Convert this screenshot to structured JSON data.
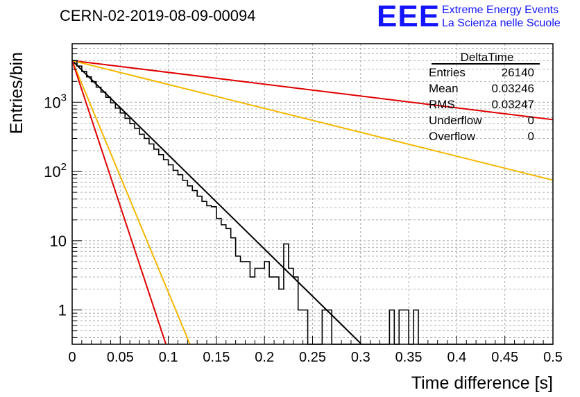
{
  "header": {
    "run_title": "CERN-02-2019-08-09-00094",
    "logo_text": "EEE",
    "logo_line1": "Extreme Energy Events",
    "logo_line2": "La Scienza nelle Scuole",
    "logo_color": "#1414ff"
  },
  "stats_box": {
    "title": "DeltaTime",
    "rows": [
      {
        "label": "Entries",
        "value": "26140"
      },
      {
        "label": "Mean",
        "value": "0.03246"
      },
      {
        "label": "RMS",
        "value": "0.03247"
      },
      {
        "label": "Underflow",
        "value": "0"
      },
      {
        "label": "Overflow",
        "value": "0"
      }
    ]
  },
  "chart_data": {
    "type": "line",
    "xlabel": "Time difference [s]",
    "ylabel": "Entries/bin",
    "xlim": [
      0,
      0.5
    ],
    "ylim": [
      0.32,
      7000
    ],
    "yscale": "log",
    "grid": true,
    "x_ticks": [
      "0",
      "0.05",
      "0.1",
      "0.15",
      "0.2",
      "0.25",
      "0.3",
      "0.35",
      "0.4",
      "0.45",
      "0.5"
    ],
    "y_ticks": [
      {
        "value": 1,
        "label": "1"
      },
      {
        "value": 10,
        "label": "10"
      },
      {
        "value": 100,
        "label": "10^2"
      },
      {
        "value": 1000,
        "label": "10^3"
      }
    ],
    "histogram": {
      "bin_width": 0.005,
      "color": "#000000",
      "values": [
        4000,
        3330,
        2790,
        2330,
        1980,
        1650,
        1400,
        1180,
        980,
        825,
        700,
        585,
        490,
        420,
        345,
        300,
        250,
        210,
        175,
        148,
        125,
        104,
        90,
        74,
        62,
        53,
        44,
        37,
        32,
        31,
        21,
        17,
        15,
        11,
        6,
        5,
        5,
        3,
        4,
        4,
        5,
        3,
        3,
        2,
        9,
        4,
        3,
        1,
        1,
        0,
        0,
        0,
        1,
        1,
        0,
        0,
        0,
        0,
        0,
        0,
        0,
        0,
        0,
        0,
        0,
        0,
        1,
        0,
        1,
        1,
        0,
        1,
        0,
        0,
        0,
        0,
        0,
        0,
        0,
        0,
        0,
        0,
        0,
        0,
        0,
        0,
        0,
        0,
        0,
        0,
        0,
        0,
        0,
        0,
        0,
        0,
        0,
        0,
        0,
        0
      ]
    },
    "fit_lines": [
      {
        "color": "#000000",
        "points": [
          [
            0,
            4000
          ],
          [
            0.3,
            0.33
          ]
        ]
      },
      {
        "color": "#e00000",
        "points": [
          [
            0,
            4000
          ],
          [
            0.5,
            560
          ]
        ]
      },
      {
        "color": "#f5b800",
        "points": [
          [
            0,
            4000
          ],
          [
            0.5,
            75
          ]
        ]
      },
      {
        "color": "#f5b800",
        "points": [
          [
            0,
            4000
          ],
          [
            0.1225,
            0.32
          ]
        ]
      },
      {
        "color": "#e00000",
        "points": [
          [
            0,
            4000
          ],
          [
            0.0975,
            0.32
          ]
        ]
      }
    ]
  }
}
